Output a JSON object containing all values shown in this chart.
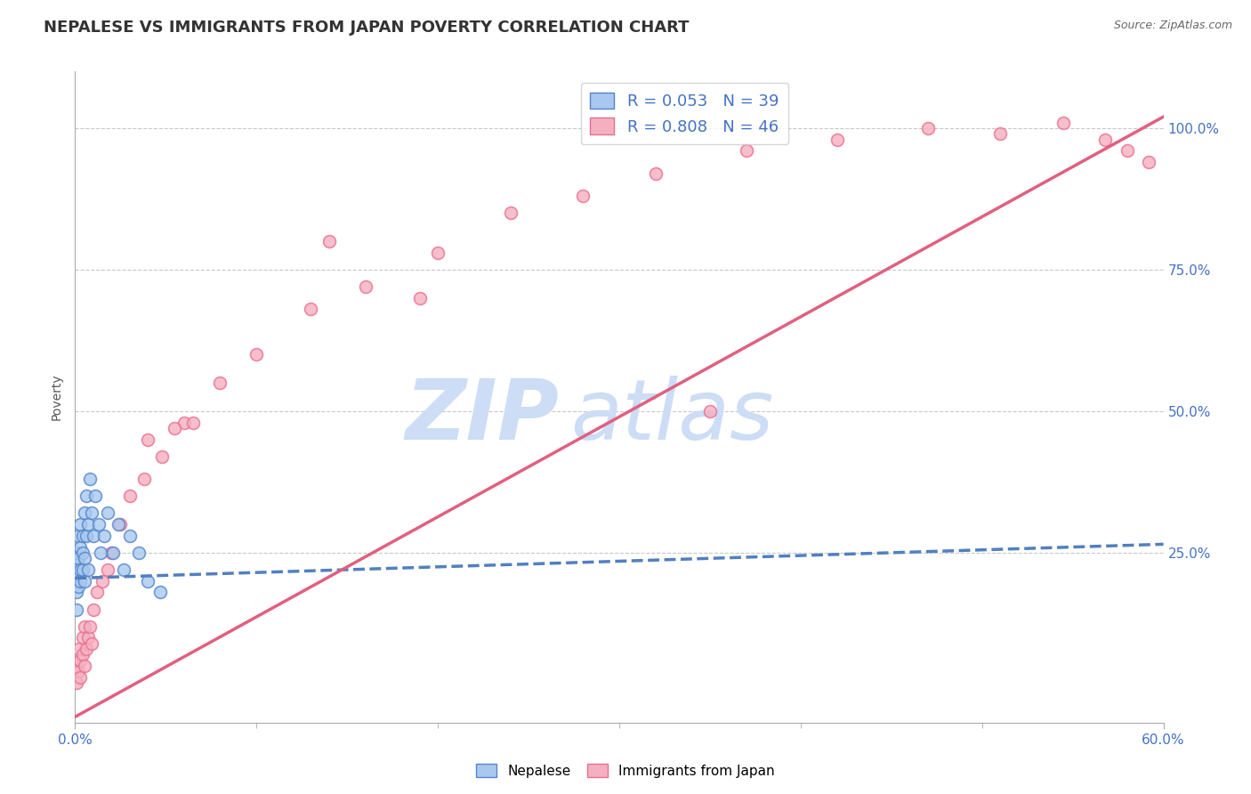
{
  "title": "NEPALESE VS IMMIGRANTS FROM JAPAN POVERTY CORRELATION CHART",
  "source_text": "Source: ZipAtlas.com",
  "ylabel": "Poverty",
  "xlim": [
    0.0,
    0.6
  ],
  "ylim": [
    -0.05,
    1.1
  ],
  "yticks": [
    0.25,
    0.5,
    0.75,
    1.0
  ],
  "ytick_labels": [
    "25.0%",
    "50.0%",
    "75.0%",
    "100.0%"
  ],
  "xtick_positions": [
    0.0,
    0.6
  ],
  "xtick_labels": [
    "0.0%",
    "60.0%"
  ],
  "legend_r1": "R = 0.053",
  "legend_n1": "N = 39",
  "legend_r2": "R = 0.808",
  "legend_n2": "N = 46",
  "color_nepalese_fill": "#a8c8f0",
  "color_nepalese_edge": "#5585c8",
  "color_japan_fill": "#f5b0c0",
  "color_japan_edge": "#e87090",
  "color_nep_line": "#5080c0",
  "color_jap_line": "#e06080",
  "watermark_zip": "ZIP",
  "watermark_atlas": "atlas",
  "watermark_color": "#ccddf5",
  "title_fontsize": 13,
  "axis_label_fontsize": 10,
  "tick_fontsize": 11,
  "nepalese_x": [
    0.001,
    0.001,
    0.001,
    0.001,
    0.001,
    0.002,
    0.002,
    0.002,
    0.002,
    0.002,
    0.003,
    0.003,
    0.003,
    0.003,
    0.004,
    0.004,
    0.004,
    0.005,
    0.005,
    0.005,
    0.006,
    0.006,
    0.007,
    0.007,
    0.008,
    0.009,
    0.01,
    0.011,
    0.013,
    0.014,
    0.016,
    0.018,
    0.021,
    0.024,
    0.027,
    0.03,
    0.035,
    0.04,
    0.047
  ],
  "nepalese_y": [
    0.2,
    0.18,
    0.22,
    0.25,
    0.15,
    0.23,
    0.21,
    0.28,
    0.19,
    0.24,
    0.26,
    0.22,
    0.2,
    0.3,
    0.28,
    0.25,
    0.22,
    0.32,
    0.24,
    0.2,
    0.35,
    0.28,
    0.3,
    0.22,
    0.38,
    0.32,
    0.28,
    0.35,
    0.3,
    0.25,
    0.28,
    0.32,
    0.25,
    0.3,
    0.22,
    0.28,
    0.25,
    0.2,
    0.18
  ],
  "japan_x": [
    0.001,
    0.001,
    0.002,
    0.002,
    0.003,
    0.003,
    0.004,
    0.004,
    0.005,
    0.005,
    0.006,
    0.007,
    0.008,
    0.009,
    0.01,
    0.012,
    0.015,
    0.018,
    0.02,
    0.025,
    0.03,
    0.038,
    0.048,
    0.06,
    0.08,
    0.1,
    0.13,
    0.16,
    0.2,
    0.24,
    0.28,
    0.32,
    0.37,
    0.42,
    0.47,
    0.51,
    0.545,
    0.568,
    0.58,
    0.592,
    0.04,
    0.055,
    0.065,
    0.14,
    0.19,
    0.35
  ],
  "japan_y": [
    0.02,
    0.05,
    0.04,
    0.08,
    0.06,
    0.03,
    0.07,
    0.1,
    0.05,
    0.12,
    0.08,
    0.1,
    0.12,
    0.09,
    0.15,
    0.18,
    0.2,
    0.22,
    0.25,
    0.3,
    0.35,
    0.38,
    0.42,
    0.48,
    0.55,
    0.6,
    0.68,
    0.72,
    0.78,
    0.85,
    0.88,
    0.92,
    0.96,
    0.98,
    1.0,
    0.99,
    1.01,
    0.98,
    0.96,
    0.94,
    0.45,
    0.47,
    0.48,
    0.8,
    0.7,
    0.5
  ],
  "nep_trend_x": [
    0.0,
    0.6
  ],
  "nep_trend_y": [
    0.205,
    0.265
  ],
  "jap_trend_x": [
    0.0,
    0.6
  ],
  "jap_trend_y": [
    -0.04,
    1.02
  ]
}
